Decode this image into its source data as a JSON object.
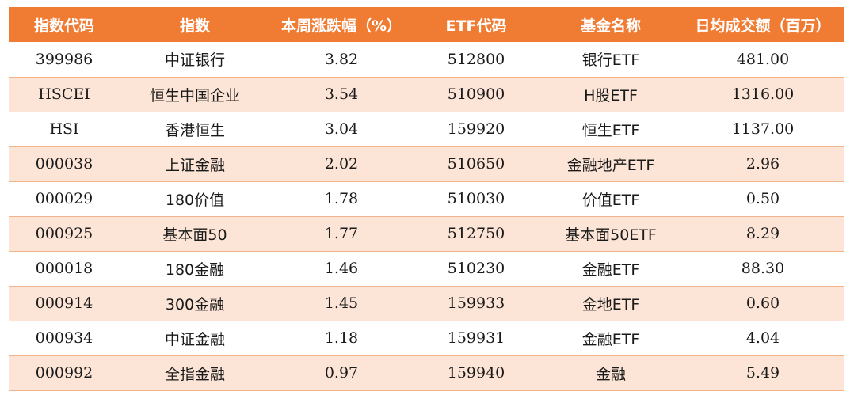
{
  "table": {
    "headers": [
      "指数代码",
      "指数",
      "本周涨跌幅（%）",
      "ETF代码",
      "基金名称",
      "日均成交额（百万）"
    ],
    "rows": [
      [
        "399986",
        "中证银行",
        "3.82",
        "512800",
        "银行ETF",
        "481.00"
      ],
      [
        "HSCEI",
        "恒生中国企业",
        "3.54",
        "510900",
        "H股ETF",
        "1316.00"
      ],
      [
        "HSI",
        "香港恒生",
        "3.04",
        "159920",
        "恒生ETF",
        "1137.00"
      ],
      [
        "000038",
        "上证金融",
        "2.02",
        "510650",
        "金融地产ETF",
        "2.96"
      ],
      [
        "000029",
        "180价值",
        "1.78",
        "510030",
        "价值ETF",
        "0.50"
      ],
      [
        "000925",
        "基本面50",
        "1.77",
        "512750",
        "基本面50ETF",
        "8.29"
      ],
      [
        "000018",
        "180金融",
        "1.46",
        "510230",
        "金融ETF",
        "88.30"
      ],
      [
        "000914",
        "300金融",
        "1.45",
        "159933",
        "金地ETF",
        "0.60"
      ],
      [
        "000934",
        "中证金融",
        "1.18",
        "159931",
        "金融ETF",
        "4.04"
      ],
      [
        "000992",
        "全指金融",
        "0.97",
        "159940",
        "金融",
        "5.49"
      ]
    ]
  },
  "colors": {
    "header_bg": "#f07c33",
    "header_text": "#ffffff",
    "stripe_bg": "#fce4d6",
    "row_border": "#f3b48c"
  }
}
